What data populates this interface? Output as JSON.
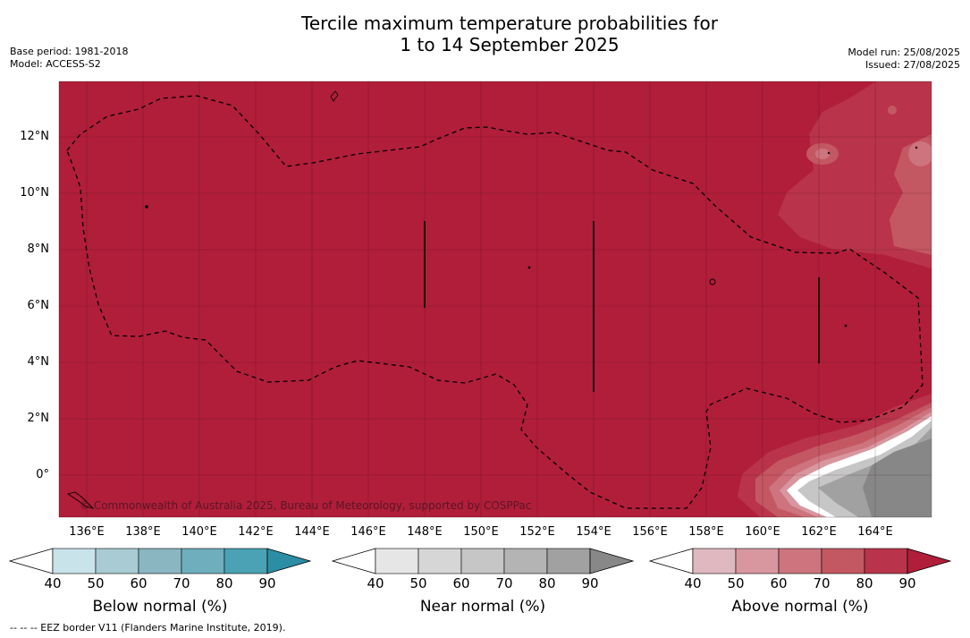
{
  "title_line1": "Tercile maximum temperature probabilities for",
  "title_line2": "1 to 14 September 2025",
  "base_period": "Base period: 1981-2018",
  "model": "Model: ACCESS-S2",
  "model_run": "Model run: 25/08/2025",
  "issued": "Issued: 27/08/2025",
  "copyright": "© Commonwealth of Australia 2025, Bureau of Meteorology, supported by COSPPac",
  "footnote": "--  --  -- EEZ border V11 (Flanders Marine Institute, 2019).",
  "lat_labels": [
    "12°N",
    "10°N",
    "8°N",
    "6°N",
    "4°N",
    "2°N",
    "0°"
  ],
  "lon_labels": [
    "136°E",
    "138°E",
    "140°E",
    "142°E",
    "144°E",
    "146°E",
    "148°E",
    "150°E",
    "152°E",
    "154°E",
    "156°E",
    "158°E",
    "160°E",
    "162°E",
    "164°E"
  ],
  "colorbars": [
    {
      "title": "Below normal (%)",
      "ticks": [
        "40",
        "50",
        "60",
        "70",
        "80",
        "90"
      ],
      "colors": [
        "#c9e3ea",
        "#a9cbd3",
        "#8ab6c2",
        "#6eaebd",
        "#4aa2b4",
        "#2b8ea5"
      ]
    },
    {
      "title": "Near normal (%)",
      "ticks": [
        "40",
        "50",
        "60",
        "70",
        "80",
        "90"
      ],
      "colors": [
        "#e6e6e6",
        "#d6d6d6",
        "#c6c6c6",
        "#b4b4b4",
        "#a1a1a1",
        "#888888"
      ]
    },
    {
      "title": "Above normal (%)",
      "ticks": [
        "40",
        "50",
        "60",
        "70",
        "80",
        "90"
      ],
      "colors": [
        "#e0b8bf",
        "#d8979f",
        "#cd747e",
        "#c35862",
        "#b9344a",
        "#b11e3a"
      ]
    }
  ],
  "colors": {
    "above_90": "#b11e3a",
    "above_80": "#b9344a",
    "above_70": "#c35862",
    "near_normal": "#a1a1a1",
    "near_normal_dark": "#878787"
  }
}
